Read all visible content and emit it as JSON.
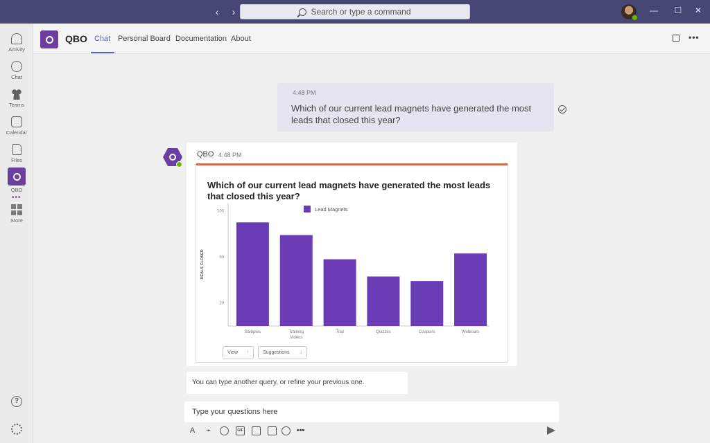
{
  "titlebar": {
    "search_placeholder": "Search or type a command",
    "back_label": "‹",
    "forward_label": "›",
    "minimize_label": "—",
    "maximize_label": "☐",
    "close_label": "✕"
  },
  "rail": {
    "items": [
      {
        "label": "Activity"
      },
      {
        "label": "Chat"
      },
      {
        "label": "Teams"
      },
      {
        "label": "Calendar"
      },
      {
        "label": "Files"
      },
      {
        "label": "QBO"
      },
      {
        "label": "Store"
      }
    ],
    "more_label": "•••",
    "help_label": "?"
  },
  "app": {
    "name": "QBO",
    "tabs": [
      {
        "label": "Chat",
        "active": true
      },
      {
        "label": "Personal Board"
      },
      {
        "label": "Documentation"
      },
      {
        "label": "About"
      }
    ],
    "more_label": "•••"
  },
  "conversation": {
    "user_message": {
      "time": "4:48 PM",
      "text": "Which of our current lead magnets have generated the most leads that closed this year?"
    },
    "bot_message": {
      "sender": "QBO",
      "time": "4:48 PM",
      "card_title": "Which of our current lead magnets have generated the most leads that closed this year?",
      "view_button": "View",
      "suggestions_button": "Suggestions"
    },
    "hint": "You can type another query, or refine your previous one."
  },
  "compose": {
    "placeholder": "Type your questions here"
  },
  "colors": {
    "brand": "#6b3fa0",
    "bar": "#6a3cb5",
    "accent": "#5b5fc7",
    "titlebar": "#464775"
  },
  "chart_data": {
    "type": "bar",
    "categories": [
      "Samples",
      "Training Videos",
      "Trial",
      "Quizzes",
      "Coupons",
      "Webinars"
    ],
    "series": [
      {
        "name": "Lead Magnets",
        "values": [
          90,
          79,
          58,
          43,
          39,
          63
        ]
      }
    ],
    "ylabel": "DEALS CLOSED",
    "yticks": [
      20,
      60,
      100
    ],
    "ylim": [
      0,
      107
    ],
    "legend": "top",
    "grid": false
  }
}
